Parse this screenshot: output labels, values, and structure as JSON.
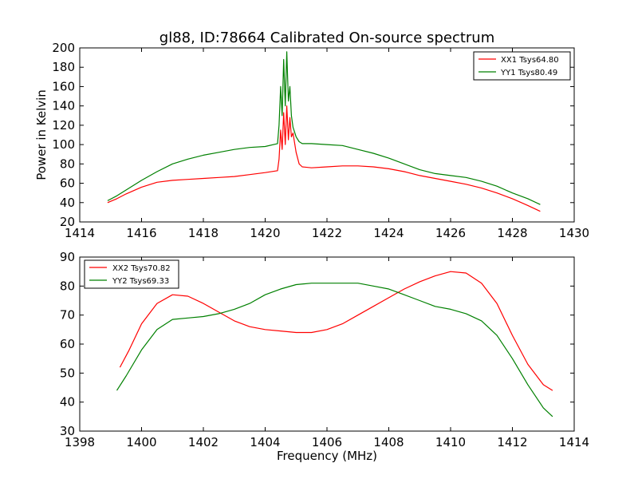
{
  "chart_data": [
    {
      "type": "line",
      "title": "gl88, ID:78664 Calibrated On-source spectrum",
      "xlabel": "",
      "ylabel": "Power in Kelvin",
      "xlim": [
        1414,
        1430
      ],
      "ylim": [
        20,
        200
      ],
      "xticks": [
        1414,
        1416,
        1418,
        1420,
        1422,
        1424,
        1426,
        1428,
        1430
      ],
      "yticks": [
        20,
        40,
        60,
        80,
        100,
        120,
        140,
        160,
        180,
        200
      ],
      "grid": false,
      "legend": "top-right",
      "series": [
        {
          "name": "XX1 Tsys64.80",
          "color": "#ff0000",
          "x": [
            1414.9,
            1415.2,
            1415.5,
            1416.0,
            1416.5,
            1417.0,
            1417.5,
            1418.0,
            1418.5,
            1419.0,
            1419.5,
            1420.0,
            1420.4,
            1420.45,
            1420.5,
            1420.55,
            1420.6,
            1420.65,
            1420.7,
            1420.75,
            1420.8,
            1420.85,
            1420.9,
            1421.0,
            1421.1,
            1421.2,
            1421.5,
            1422.0,
            1422.5,
            1423.0,
            1423.5,
            1424.0,
            1424.5,
            1425.0,
            1425.5,
            1426.0,
            1426.5,
            1427.0,
            1427.5,
            1428.0,
            1428.5,
            1428.9
          ],
          "values": [
            40,
            44,
            49,
            56,
            61,
            63,
            64,
            65,
            66,
            67,
            69,
            71,
            73,
            85,
            115,
            95,
            133,
            100,
            140,
            105,
            128,
            108,
            112,
            92,
            80,
            77,
            76,
            77,
            78,
            78,
            77,
            75,
            72,
            68,
            65,
            62,
            59,
            55,
            50,
            44,
            37,
            31
          ]
        },
        {
          "name": "YY1 Tsys80.49",
          "color": "#008000",
          "x": [
            1414.9,
            1415.2,
            1415.5,
            1416.0,
            1416.5,
            1417.0,
            1417.5,
            1418.0,
            1418.5,
            1419.0,
            1419.5,
            1420.0,
            1420.4,
            1420.45,
            1420.5,
            1420.55,
            1420.6,
            1420.65,
            1420.7,
            1420.75,
            1420.8,
            1420.85,
            1420.9,
            1421.0,
            1421.1,
            1421.2,
            1421.5,
            1422.0,
            1422.5,
            1423.0,
            1423.5,
            1424.0,
            1424.5,
            1425.0,
            1425.5,
            1426.0,
            1426.5,
            1427.0,
            1427.5,
            1428.0,
            1428.5,
            1428.9
          ],
          "values": [
            42,
            47,
            53,
            63,
            72,
            80,
            85,
            89,
            92,
            95,
            97,
            98,
            101,
            120,
            160,
            130,
            188,
            140,
            196,
            145,
            160,
            130,
            118,
            108,
            103,
            101,
            101,
            100,
            99,
            95,
            91,
            86,
            80,
            74,
            70,
            68,
            66,
            62,
            57,
            50,
            44,
            38
          ]
        }
      ]
    },
    {
      "type": "line",
      "title": "",
      "xlabel": "Frequency (MHz)",
      "ylabel": "",
      "xlim": [
        1398,
        1414
      ],
      "ylim": [
        30,
        90
      ],
      "xticks": [
        1398,
        1400,
        1402,
        1404,
        1406,
        1408,
        1410,
        1412,
        1414
      ],
      "yticks": [
        30,
        40,
        50,
        60,
        70,
        80,
        90
      ],
      "grid": false,
      "legend": "top-left",
      "series": [
        {
          "name": "XX2 Tsys70.82",
          "color": "#ff0000",
          "x": [
            1399.3,
            1399.6,
            1400.0,
            1400.5,
            1401.0,
            1401.5,
            1402.0,
            1402.5,
            1403.0,
            1403.5,
            1404.0,
            1404.5,
            1405.0,
            1405.5,
            1406.0,
            1406.5,
            1407.0,
            1407.5,
            1408.0,
            1408.5,
            1409.0,
            1409.5,
            1410.0,
            1410.5,
            1411.0,
            1411.5,
            1412.0,
            1412.5,
            1413.0,
            1413.3
          ],
          "values": [
            52,
            58,
            67,
            74,
            77,
            76.5,
            74,
            71,
            68,
            66,
            65,
            64.5,
            64,
            64,
            65,
            67,
            70,
            73,
            76,
            79,
            81.5,
            83.5,
            85,
            84.5,
            81,
            74,
            63,
            53,
            46,
            44
          ]
        },
        {
          "name": "YY2 Tsys69.33",
          "color": "#008000",
          "x": [
            1399.2,
            1399.5,
            1400.0,
            1400.5,
            1401.0,
            1401.5,
            1402.0,
            1402.5,
            1403.0,
            1403.5,
            1404.0,
            1404.5,
            1405.0,
            1405.5,
            1406.0,
            1406.5,
            1407.0,
            1407.5,
            1408.0,
            1408.5,
            1409.0,
            1409.5,
            1410.0,
            1410.5,
            1411.0,
            1411.5,
            1412.0,
            1412.5,
            1413.0,
            1413.3
          ],
          "values": [
            44,
            49,
            58,
            65,
            68.5,
            69,
            69.5,
            70.5,
            72,
            74,
            77,
            79,
            80.5,
            81,
            81,
            81,
            81,
            80,
            79,
            77,
            75,
            73,
            72,
            70.5,
            68,
            63,
            55,
            46,
            38,
            35
          ]
        }
      ]
    }
  ]
}
